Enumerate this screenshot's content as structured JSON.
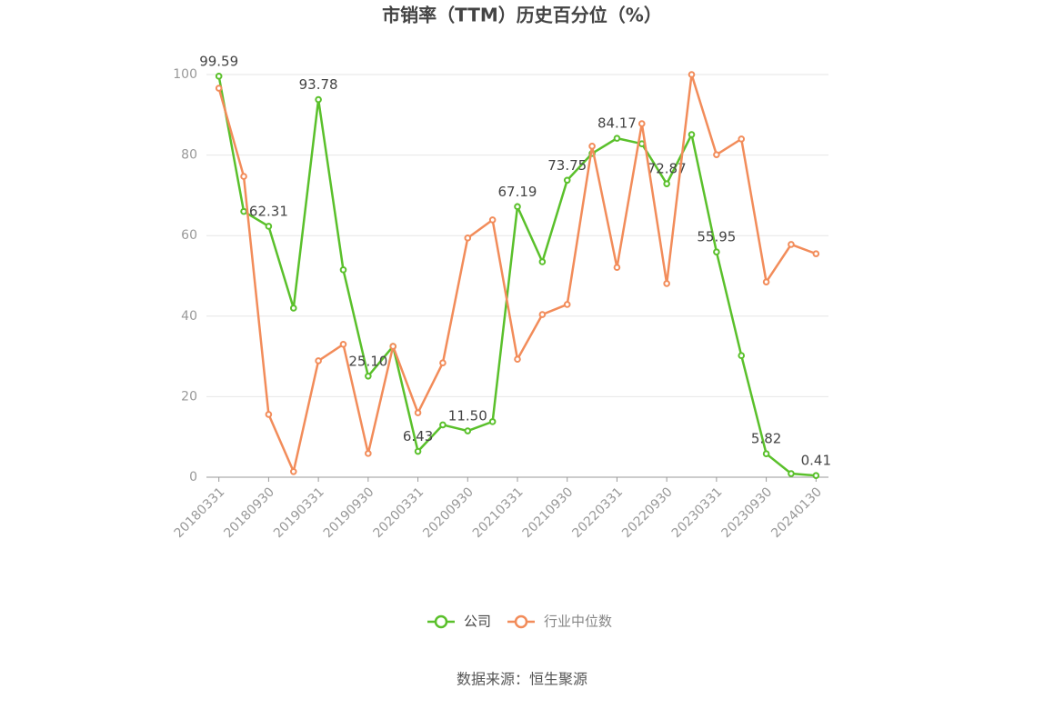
{
  "chart_data": {
    "type": "line",
    "title": "市销率（TTM）历史百分位（%）",
    "categories": [
      "20180331",
      null,
      "20180930",
      null,
      "20190331",
      null,
      "20190930",
      null,
      "20200331",
      null,
      "20200930",
      null,
      "20210331",
      null,
      "20210930",
      null,
      "20220331",
      null,
      "20220930",
      null,
      "20230331",
      null,
      "20230930",
      null,
      "20240130"
    ],
    "series": [
      {
        "name": "公司",
        "color": "#5ac02b",
        "values": [
          99.59,
          66,
          62.31,
          42,
          93.78,
          51.5,
          25.1,
          32.5,
          6.43,
          13,
          11.5,
          13.8,
          67.19,
          53.5,
          73.75,
          80.4,
          84.17,
          82.8,
          72.87,
          85.1,
          55.95,
          30.2,
          5.82,
          0.9,
          0.41
        ],
        "value_labels": [
          "99.59",
          null,
          "62.31",
          null,
          "93.78",
          null,
          "25.10",
          null,
          "6.43",
          null,
          "11.50",
          null,
          "67.19",
          null,
          "73.75",
          null,
          "84.17",
          null,
          "72.87",
          null,
          "55.95",
          null,
          "5.82",
          null,
          "0.41"
        ]
      },
      {
        "name": "行业中位数",
        "color": "#f28c5a",
        "values": [
          96.6,
          74.7,
          15.6,
          1.4,
          28.9,
          33.0,
          5.9,
          32.5,
          16.0,
          28.4,
          59.4,
          63.9,
          29.3,
          40.4,
          42.9,
          82.2,
          52.1,
          87.8,
          48.1,
          100,
          80.1,
          84.0,
          48.5,
          57.8,
          55.5
        ]
      }
    ],
    "ylim": [
      0,
      100
    ],
    "yticks": [
      0,
      20,
      40,
      60,
      80,
      100
    ],
    "grid": true,
    "legend": "bottom",
    "source": "数据来源：恒生聚源"
  }
}
